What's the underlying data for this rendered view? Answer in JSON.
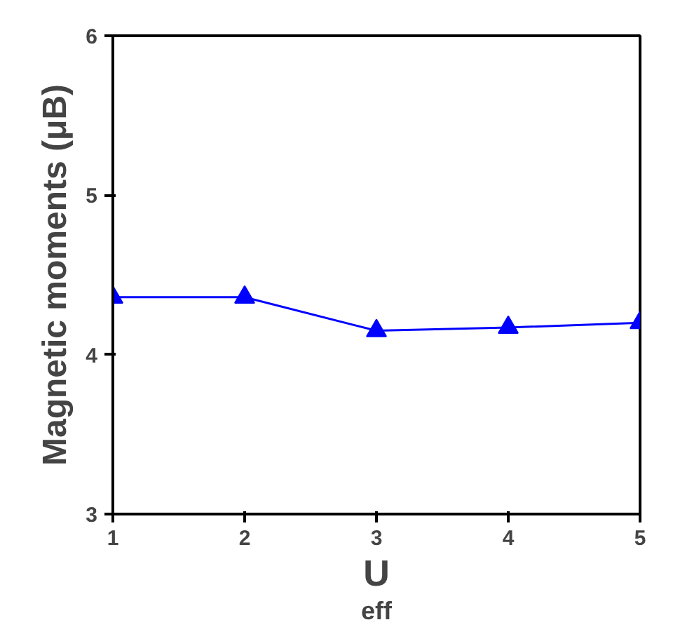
{
  "chart_data": {
    "type": "line",
    "xlabel": "U$_{eff}$",
    "ylabel": "Magnetic moments (μB)",
    "x": [
      1,
      2,
      3,
      4,
      5
    ],
    "series": [
      {
        "color": "#0000ff",
        "values": [
          4.36,
          4.36,
          4.15,
          4.17,
          4.2
        ]
      }
    ],
    "xlim": [
      1,
      5
    ],
    "ylim": [
      3,
      6
    ],
    "xticks": [
      1,
      2,
      3,
      4,
      5
    ],
    "yticks": [
      3,
      4,
      5,
      6
    ],
    "marker": "triangle",
    "line_style": "solid",
    "grid": false
  }
}
